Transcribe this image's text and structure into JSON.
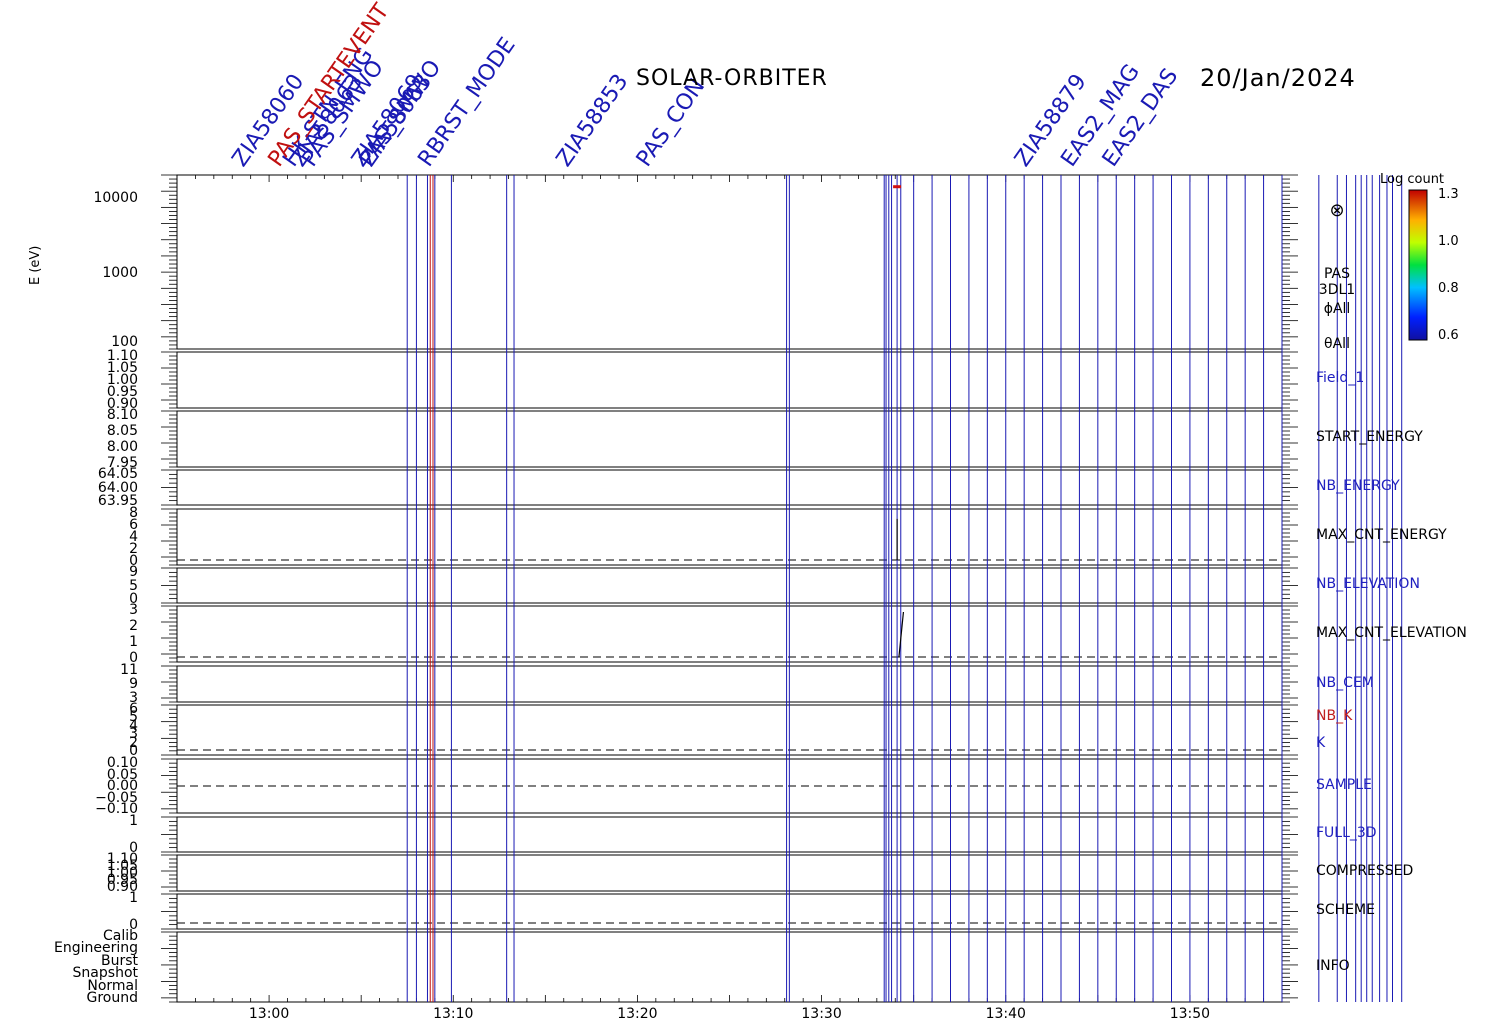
{
  "header": {
    "mission": "SOLAR-ORBITER",
    "date": "20/Jan/2024"
  },
  "chart_data": {
    "type": "line",
    "time_axis": {
      "ticks": [
        "13:00",
        "13:10",
        "13:20",
        "13:30",
        "13:40",
        "13:50"
      ],
      "start": "12:55",
      "end": "13:55"
    },
    "spectrogram": {
      "ylabel": "E (eV)",
      "yscale": "log",
      "ylim": [
        100,
        20000
      ],
      "ytick_labels": [
        "10000",
        "1000",
        "100"
      ],
      "product": [
        "PAS",
        "3DL1",
        "ϕAll",
        "θAll"
      ],
      "colorbar": {
        "label": "Log count",
        "ticks": [
          "1.3",
          "1.0",
          "0.8",
          "0.6"
        ],
        "range": [
          0.6,
          1.3
        ]
      }
    },
    "panels": [
      {
        "name": "Field_1",
        "color": "#2020c0",
        "ytick_labels": [
          "1.10",
          "1.05",
          "1.00",
          "0.95",
          "0.90"
        ]
      },
      {
        "name": "START_ENERGY",
        "color": "#000000",
        "ytick_labels": [
          "8.10",
          "8.05",
          "8.00",
          "7.95"
        ]
      },
      {
        "name": "NB_ENERGY",
        "color": "#2020c0",
        "ytick_labels": [
          "64.05",
          "64.00",
          "63.95"
        ]
      },
      {
        "name": "MAX_CNT_ENERGY",
        "color": "#000000",
        "ytick_labels": [
          "8",
          "6",
          "4",
          "2",
          "0"
        ]
      },
      {
        "name": "NB_ELEVATION",
        "color": "#2020c0",
        "ytick_labels": [
          "9",
          "5",
          "0"
        ]
      },
      {
        "name": "MAX_CNT_ELEVATION",
        "color": "#000000",
        "ytick_labels": [
          "3",
          "2",
          "1",
          "0"
        ]
      },
      {
        "name": "NB_CEM",
        "color": "#2020c0",
        "ytick_labels": [
          "11",
          "9",
          "3"
        ]
      },
      {
        "name": "NB_K / K",
        "color": "#c02020",
        "ytick_labels": [
          "6",
          "5",
          "4",
          "3",
          "2",
          "0"
        ],
        "labels": [
          "NB_K",
          "K"
        ]
      },
      {
        "name": "SAMPLE",
        "color": "#2020c0",
        "ytick_labels": [
          "0.10",
          "0.05",
          "0.00",
          "−0.05",
          "−0.10"
        ]
      },
      {
        "name": "FULL_3D",
        "color": "#2020c0",
        "ytick_labels": [
          "1",
          "0"
        ]
      },
      {
        "name": "COMPRESSED",
        "color": "#000000",
        "ytick_labels": [
          "1.10",
          "1.05",
          "1.00",
          "0.95",
          "0.90"
        ]
      },
      {
        "name": "SCHEME",
        "color": "#000000",
        "ytick_labels": [
          "1",
          "0"
        ]
      },
      {
        "name": "INFO",
        "color": "#000000",
        "ytick_labels": [
          "Calib",
          "Engineering",
          "Burst",
          "Snapshot",
          "Normal",
          "Ground"
        ]
      }
    ],
    "event_markers": {
      "blue_times_min": [
        12.5,
        13.0,
        13.6,
        14.0,
        14.9,
        17.9,
        18.3,
        33.1,
        33.25,
        38.4,
        38.5,
        38.65,
        38.8,
        39.1,
        39.3,
        40.0,
        41.0,
        42.0,
        43.0,
        44.0,
        45.0,
        46.0,
        47.0,
        48.0,
        49.0,
        50.0,
        51.0,
        52.0,
        53.0,
        54.0,
        55.0,
        56.0,
        57.0,
        58.0,
        59.0,
        60.0,
        62.0,
        63.0,
        63.5,
        64.0,
        64.3,
        64.6,
        64.9,
        65.3,
        65.7,
        66.0,
        66.5,
        73.6,
        73.9,
        74.4,
        74.6
      ],
      "red_times_min": [
        13.75,
        13.9
      ],
      "labels": [
        "ZIA58060",
        "HK-STN_ENG",
        "PAS_SMWO",
        "ZIA58063",
        "PAS_STARTEVENT",
        "ZIA58069",
        "PAS_SMWO",
        "ZIA58063",
        "RBRST_MODE",
        "ZIA58853",
        "PAS_CON",
        "ZIA58879",
        "EAS2_MAG",
        "EAS2_DAS"
      ]
    },
    "traces": {
      "max_cnt_energy_spike": {
        "time_min": 39.1,
        "value": 7
      },
      "max_cnt_elevation_spike": {
        "time_min": 39.2,
        "values": [
          0,
          1,
          2,
          3
        ]
      },
      "spectrogram_pixels": [
        {
          "time_min": 39.1,
          "energy_eV": 14000,
          "log_count": 1.3
        }
      ]
    }
  }
}
